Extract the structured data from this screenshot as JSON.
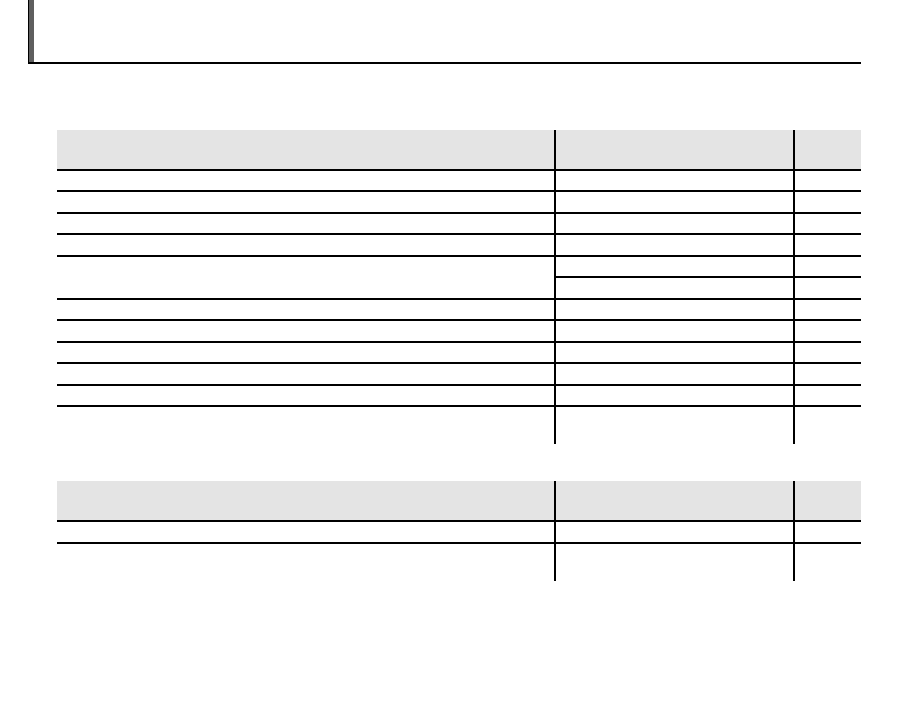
{
  "section": {
    "title": ""
  },
  "tables": [
    {
      "headers": [
        "",
        "",
        ""
      ],
      "accent_header_bg": "#e4e4e4"
    },
    {
      "headers": [
        "",
        "",
        ""
      ],
      "accent_header_bg": "#e4e4e4"
    }
  ]
}
